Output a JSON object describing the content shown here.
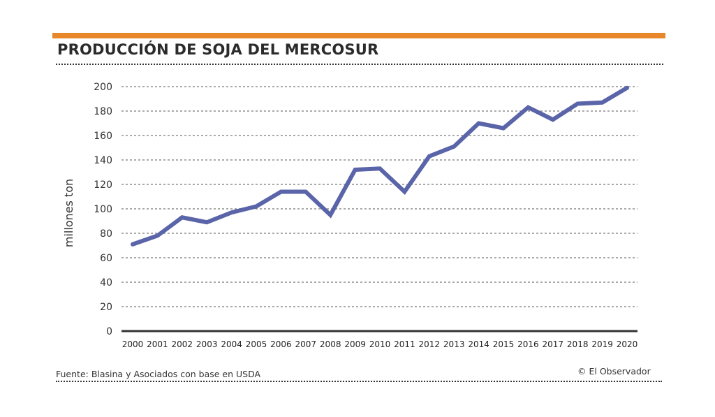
{
  "title": "PRODUCCIÓN DE SOJA DEL MERCOSUR",
  "footer": {
    "source": "Fuente: Blasina y Asociados con base en USDA",
    "credit": "© El Observador"
  },
  "colors": {
    "accent_bar": "#e8862a",
    "line": "#5a64a8",
    "axis": "#333333",
    "grid": "#777777"
  },
  "chart_data": {
    "type": "line",
    "title": "PRODUCCIÓN DE SOJA DEL MERCOSUR",
    "xlabel": "",
    "ylabel": "millones ton",
    "ylim": [
      0,
      200
    ],
    "yticks": [
      0,
      20,
      40,
      60,
      80,
      100,
      120,
      140,
      160,
      180,
      200
    ],
    "grid": true,
    "legend": "none",
    "categories": [
      "2000",
      "2001",
      "2002",
      "2003",
      "2004",
      "2005",
      "2006",
      "2007",
      "2008",
      "2009",
      "2010",
      "2011",
      "2012",
      "2013",
      "2014",
      "2015",
      "2016",
      "2017",
      "2018",
      "2019",
      "2020"
    ],
    "series": [
      {
        "name": "Producción de soja",
        "values": [
          71,
          78,
          93,
          89,
          97,
          102,
          114,
          114,
          95,
          132,
          133,
          114,
          143,
          151,
          170,
          166,
          183,
          173,
          186,
          187,
          199
        ]
      }
    ]
  }
}
